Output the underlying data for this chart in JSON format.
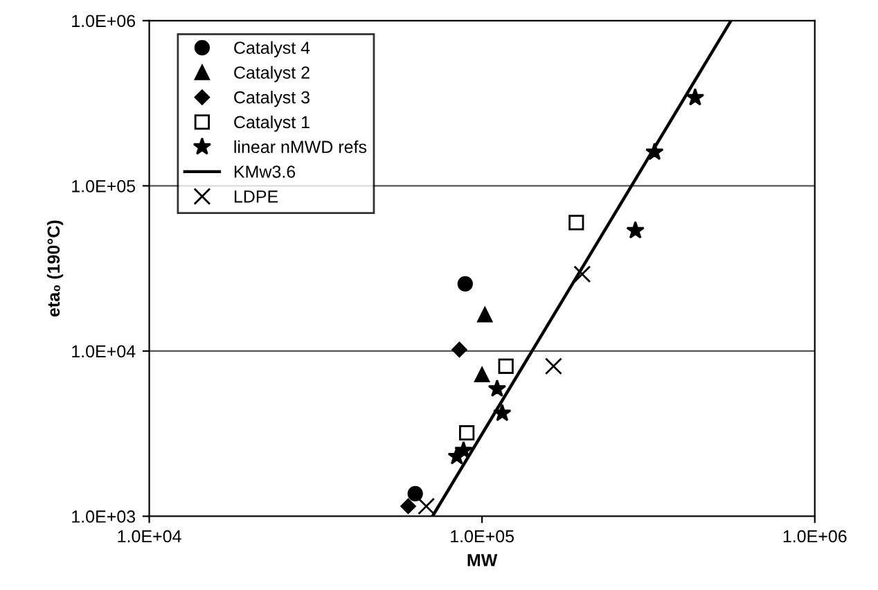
{
  "chart_data": {
    "type": "scatter",
    "xlabel": "MW",
    "ylabel": "eta₀ (190°C)",
    "log": "xy",
    "grid": "y",
    "legend": "top left",
    "xlim": [
      10000,
      1000000
    ],
    "ylim": [
      1000,
      1000000
    ],
    "xticks": [
      {
        "value": 10000,
        "label": "1.0E+04"
      },
      {
        "value": 100000,
        "label": "1.0E+05"
      },
      {
        "value": 1000000,
        "label": "1.0E+06"
      }
    ],
    "yticks": [
      {
        "value": 1000,
        "label": "1.0E+03"
      },
      {
        "value": 10000,
        "label": "1.0E+04"
      },
      {
        "value": 100000,
        "label": "1.0E+05"
      },
      {
        "value": 1000000,
        "label": "1.0E+06"
      }
    ],
    "series": [
      {
        "name": "Catalyst 4",
        "color": "#000000",
        "marker": "circle",
        "x": [
          89000,
          63000
        ],
        "values": [
          25500,
          1370
        ]
      },
      {
        "name": "Catalyst 2",
        "color": "#000000",
        "marker": "triangle",
        "x": [
          102000,
          100000
        ],
        "values": [
          16600,
          7200
        ]
      },
      {
        "name": "Catalyst 3",
        "color": "#000000",
        "marker": "diamond",
        "x": [
          85500,
          60000
        ],
        "values": [
          10200,
          1150
        ]
      },
      {
        "name": "Catalyst 1",
        "color": "#000000",
        "marker": "square",
        "x": [
          118000,
          90000,
          192000
        ],
        "values": [
          8100,
          3200,
          60000
        ]
      },
      {
        "name": "linear nMWD refs",
        "color": "#000000",
        "marker": "star",
        "x": [
          111000,
          115000,
          88000,
          84000,
          437000,
          330000,
          289000
        ],
        "values": [
          5900,
          4200,
          2500,
          2300,
          342000,
          160000,
          53600
        ]
      },
      {
        "name": "KMw3.6",
        "type": "line",
        "color": "#000000",
        "marker": "none",
        "line_style": "solid",
        "x": [
          71000,
          560000
        ],
        "values": [
          1000,
          1000000
        ]
      },
      {
        "name": "LDPE",
        "color": "#000000",
        "marker": "cross",
        "x": [
          68000,
          200000,
          164000
        ],
        "values": [
          1150,
          29200,
          8100
        ]
      }
    ]
  }
}
